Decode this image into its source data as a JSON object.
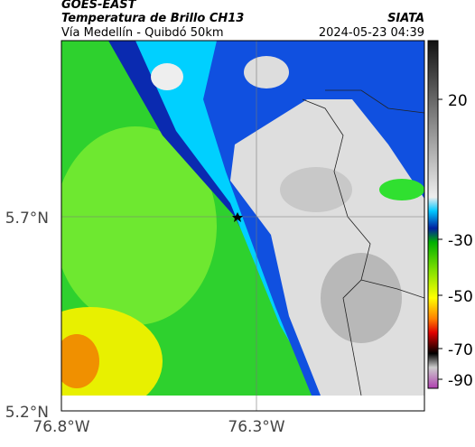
{
  "header": {
    "source": "GOES-EAST",
    "product": "Temperatura de Brillo CH13",
    "region": "Vía Medellín - Quibdó 50km",
    "agency": "SIATA",
    "timestamp": "2024-05-23 04:39"
  },
  "map": {
    "lat_ticks": [
      "5.7°N",
      "5.2°N"
    ],
    "lon_ticks": [
      "76.8°W",
      "76.3°W"
    ]
  },
  "colorbar": {
    "ticks": [
      20,
      -30,
      -50,
      -70,
      -90
    ]
  }
}
